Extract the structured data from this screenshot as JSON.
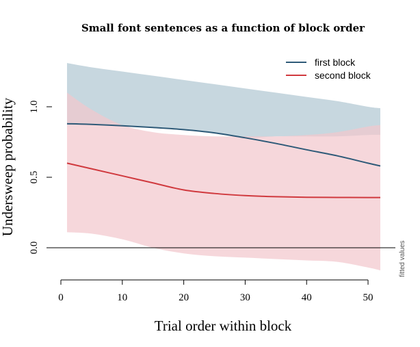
{
  "chart_data": {
    "type": "line",
    "title": "Small font sentences as a function of block order",
    "xlabel": "Trial order within block",
    "ylabel": "Undersweep probability",
    "side_note": "fitted values",
    "xlim": [
      1,
      52
    ],
    "ylim": [
      -0.15,
      1.32
    ],
    "x_ticks": [
      0,
      10,
      20,
      30,
      40,
      50
    ],
    "y_ticks": [
      0.0,
      0.5,
      1.0
    ],
    "x_tick_labels": [
      "0",
      "10",
      "20",
      "30",
      "40",
      "50"
    ],
    "y_tick_labels": [
      "0.0",
      "0.5",
      "1.0"
    ],
    "reference_line_y": 0.0,
    "legend_position": "top-right",
    "x": [
      1,
      5,
      10,
      15,
      20,
      25,
      30,
      35,
      40,
      45,
      50,
      52
    ],
    "series": [
      {
        "name": "first block",
        "color": "#2e5a78",
        "band_color": "#c7d7df",
        "values": [
          0.88,
          0.875,
          0.865,
          0.853,
          0.838,
          0.815,
          0.78,
          0.74,
          0.695,
          0.652,
          0.6,
          0.58
        ],
        "lower": [
          0.87,
          0.87,
          0.86,
          0.85,
          0.835,
          0.81,
          0.78,
          0.79,
          0.79,
          0.79,
          0.8,
          0.8
        ],
        "upper": [
          1.31,
          1.28,
          1.25,
          1.22,
          1.19,
          1.16,
          1.13,
          1.1,
          1.07,
          1.04,
          1.0,
          0.99
        ]
      },
      {
        "name": "second block",
        "color": "#d0393e",
        "band_color": "#f3c7cd",
        "values": [
          0.6,
          0.56,
          0.51,
          0.46,
          0.41,
          0.385,
          0.37,
          0.362,
          0.358,
          0.357,
          0.356,
          0.356
        ],
        "lower": [
          0.11,
          0.1,
          0.06,
          0.0,
          -0.04,
          -0.06,
          -0.07,
          -0.08,
          -0.09,
          -0.1,
          -0.14,
          -0.16
        ],
        "upper": [
          1.1,
          0.98,
          0.87,
          0.82,
          0.8,
          0.79,
          0.79,
          0.79,
          0.8,
          0.82,
          0.86,
          0.87
        ]
      }
    ]
  }
}
